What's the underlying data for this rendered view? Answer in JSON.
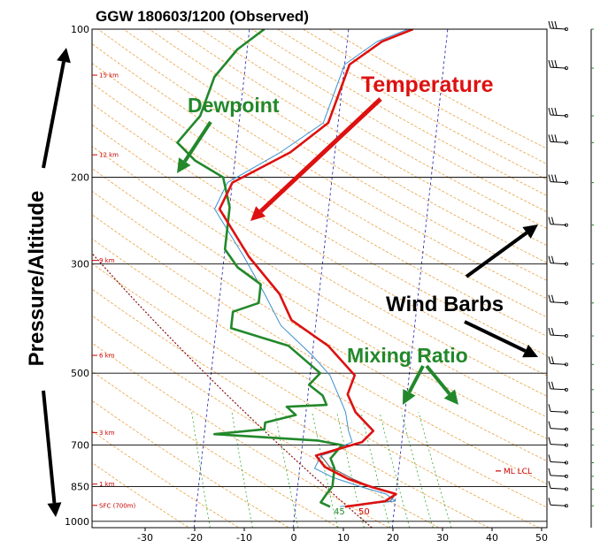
{
  "chart_data": {
    "type": "line",
    "title": "GGW   180603/1200  (Observed)",
    "y_axis_label": "Pressure/Altitude",
    "x_ticks": [
      -30,
      -20,
      -10,
      0,
      10,
      20,
      30,
      40,
      50
    ],
    "xlim": [
      -40,
      50
    ],
    "pressure_ticks": [
      100,
      200,
      300,
      500,
      700,
      850,
      1000
    ],
    "ylim": [
      1030,
      100
    ],
    "y_scale": "log",
    "height_labels": [
      {
        "p": 124,
        "text": "15 km"
      },
      {
        "p": 180,
        "text": "12 km"
      },
      {
        "p": 295,
        "text": "9 km"
      },
      {
        "p": 460,
        "text": "6 km"
      },
      {
        "p": 660,
        "text": "3 km"
      },
      {
        "p": 840,
        "text": "1 km"
      },
      {
        "p": 928,
        "text": "SFC (700m)"
      }
    ],
    "lcl_label": {
      "p": 790,
      "text": "ML LCL"
    },
    "series": [
      {
        "name": "Temperature",
        "color": "#dd1111",
        "points": [
          [
            10,
            934
          ],
          [
            18,
            910
          ],
          [
            20,
            880
          ],
          [
            15,
            852
          ],
          [
            10,
            820
          ],
          [
            5,
            775
          ],
          [
            3,
            735
          ],
          [
            12,
            690
          ],
          [
            14,
            655
          ],
          [
            10,
            600
          ],
          [
            8,
            552
          ],
          [
            9,
            505
          ],
          [
            3,
            440
          ],
          [
            -5,
            390
          ],
          [
            -8,
            345
          ],
          [
            -15,
            290
          ],
          [
            -22,
            232
          ],
          [
            -20,
            205
          ],
          [
            -9,
            178
          ],
          [
            -2,
            155
          ],
          [
            1,
            118
          ],
          [
            7,
            106
          ],
          [
            13,
            100
          ]
        ]
      },
      {
        "name": "Dewpoint",
        "color": "#22882b",
        "points": [
          [
            7,
            934
          ],
          [
            5,
            915
          ],
          [
            6,
            880
          ],
          [
            7,
            850
          ],
          [
            7,
            780
          ],
          [
            6,
            745
          ],
          [
            8,
            700
          ],
          [
            3,
            685
          ],
          [
            -18,
            665
          ],
          [
            -8,
            650
          ],
          [
            -8,
            630
          ],
          [
            -2,
            608
          ],
          [
            -4,
            585
          ],
          [
            4,
            580
          ],
          [
            3,
            555
          ],
          [
            0,
            528
          ],
          [
            2,
            500
          ],
          [
            -5,
            440
          ],
          [
            -17,
            405
          ],
          [
            -17,
            375
          ],
          [
            -12,
            360
          ],
          [
            -12,
            330
          ],
          [
            -17,
            305
          ],
          [
            -20,
            280
          ],
          [
            -20,
            230
          ],
          [
            -22,
            200
          ],
          [
            -28,
            185
          ],
          [
            -32,
            170
          ],
          [
            -28,
            150
          ],
          [
            -26,
            125
          ],
          [
            -22,
            110
          ],
          [
            -17,
            100
          ]
        ]
      },
      {
        "name": "Parcel",
        "color": "#3a90d0",
        "points": [
          [
            9,
            934
          ],
          [
            20,
            910
          ],
          [
            18,
            880
          ],
          [
            13,
            852
          ],
          [
            7,
            815
          ],
          [
            3,
            780
          ],
          [
            4,
            735
          ],
          [
            10,
            690
          ],
          [
            9,
            655
          ],
          [
            8,
            600
          ],
          [
            6,
            550
          ],
          [
            4,
            505
          ],
          [
            0,
            460
          ],
          [
            -7,
            400
          ],
          [
            -11,
            345
          ],
          [
            -16,
            290
          ],
          [
            -23,
            232
          ],
          [
            -21,
            205
          ],
          [
            -11,
            178
          ],
          [
            -3,
            155
          ],
          [
            0,
            118
          ],
          [
            6,
            106
          ],
          [
            12,
            100
          ]
        ]
      },
      {
        "name": "Virtual Temperature",
        "color": "#555555",
        "points": [
          [
            11,
            934
          ],
          [
            19,
            910
          ],
          [
            20,
            880
          ],
          [
            15,
            852
          ],
          [
            11,
            820
          ],
          [
            6,
            775
          ],
          [
            4,
            735
          ],
          [
            12,
            690
          ],
          [
            14,
            655
          ],
          [
            10,
            600
          ],
          [
            8,
            552
          ],
          [
            9,
            505
          ],
          [
            3,
            440
          ],
          [
            -5,
            390
          ],
          [
            -8,
            345
          ],
          [
            -15,
            290
          ],
          [
            -22,
            232
          ],
          [
            -20,
            205
          ],
          [
            -9,
            178
          ],
          [
            -2,
            155
          ],
          [
            1,
            118
          ],
          [
            7,
            106
          ],
          [
            13,
            100
          ]
        ]
      }
    ],
    "mixing_ratio_labels": [
      "45",
      "50"
    ],
    "wind_barbs_pressure": [
      100,
      120,
      150,
      170,
      205,
      250,
      300,
      360,
      420,
      480,
      540,
      600,
      650,
      700,
      760,
      810,
      860,
      930
    ]
  },
  "annotations": {
    "temperature": "Temperature",
    "dewpoint": "Dewpoint",
    "wind_barbs": "Wind Barbs",
    "mixing_ratio": "Mixing Ratio",
    "pressure_altitude": "Pressure/Altitude"
  },
  "colors": {
    "temperature": "#dd1111",
    "dewpoint": "#22882b",
    "dry_adiabat": "#e8a040",
    "mixing_ratio_line": "#33aa33",
    "height_label": "#cc0000",
    "isotherm_blue": "#1a1aaa"
  }
}
